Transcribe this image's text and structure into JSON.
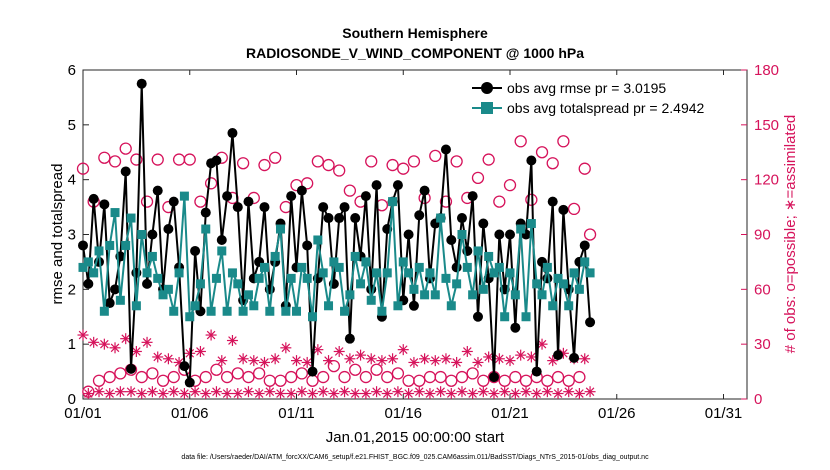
{
  "chart_data": {
    "type": "line",
    "title": "Southern Hemisphere",
    "subtitle": "RADIOSONDE_V_WIND_COMPONENT @ 1000 hPa",
    "xlabel": "Jan.01,2015 00:00:00 start",
    "ylabel_left": "rmse and totalspread",
    "ylabel_right": "# of obs: o=possible; ∗=assimilated",
    "footnote": "data file: /Users/raeder/DAI/ATM_forcXX/CAM6_setup/f.e21.FHIST_BGC.f09_025.CAM6assim.011/BadSST/Diags_NTrS_2015-01/obs_diag_output.nc",
    "xlim": [
      1,
      32.1
    ],
    "ylim_left": [
      0,
      6
    ],
    "ylim_right": [
      0,
      180
    ],
    "x_ticks": [
      1,
      6,
      11,
      16,
      21,
      26,
      31
    ],
    "x_tick_labels": [
      "01/01",
      "01/06",
      "01/11",
      "01/16",
      "01/21",
      "01/26",
      "01/31"
    ],
    "y_left_ticks": [
      "0",
      "1",
      "2",
      "3",
      "4",
      "5",
      "6"
    ],
    "y_right_ticks": [
      "0",
      "30",
      "60",
      "90",
      "120",
      "150",
      "180"
    ],
    "colors": {
      "rmse": "#000000",
      "spread": "#1a8a8a",
      "counts": "#d6135b"
    },
    "legend": [
      {
        "label": "obs avg rmse pr = 3.0195",
        "series": "rmse"
      },
      {
        "label": "obs avg totalspread pr = 2.4942",
        "series": "spread"
      }
    ],
    "x_start": 1.0,
    "x_step": 0.25,
    "series": [
      {
        "name": "obs avg rmse",
        "axis": "left",
        "values": [
          2.8,
          2.1,
          3.65,
          2.5,
          3.55,
          1.75,
          2.0,
          2.6,
          4.15,
          0.55,
          2.3,
          5.75,
          2.1,
          3.0,
          3.8,
          2.0,
          3.1,
          3.6,
          2.4,
          0.6,
          0.3,
          2.7,
          1.6,
          3.4,
          4.3,
          4.35,
          2.9,
          3.7,
          4.85,
          3.5,
          1.8,
          3.6,
          2.2,
          2.5,
          3.5,
          2.0,
          2.5,
          3.2,
          1.7,
          3.7,
          2.4,
          3.8,
          2.8,
          0.5,
          2.2,
          3.5,
          3.3,
          2.1,
          3.3,
          3.5,
          1.1,
          3.3,
          2.6,
          3.7,
          2.0,
          3.9,
          1.5,
          3.1,
          3.6,
          3.9,
          1.8,
          3.0,
          1.7,
          3.35,
          3.8,
          2.2,
          3.2,
          3.3,
          4.55,
          2.9,
          2.4,
          3.3,
          2.7,
          3.7,
          1.5,
          3.2,
          2.2,
          0.4,
          3.0,
          2.0,
          3.0,
          1.3,
          3.2,
          3.0,
          4.35,
          0.5,
          2.5,
          2.2,
          3.6,
          0.8,
          3.45,
          2.0,
          0.75,
          2.5,
          2.8,
          1.4
        ],
        "display": "line+filled-circle"
      },
      {
        "name": "obs avg totalspread",
        "axis": "left",
        "values": [
          2.4,
          2.5,
          2.3,
          2.7,
          1.6,
          2.8,
          3.4,
          1.8,
          2.8,
          3.3,
          1.7,
          3.0,
          2.3,
          2.6,
          2.2,
          1.9,
          2.0,
          1.6,
          2.3,
          3.7,
          1.5,
          1.7,
          2.1,
          3.1,
          1.6,
          2.2,
          2.7,
          1.6,
          2.3,
          2.1,
          1.6,
          1.9,
          1.7,
          2.2,
          2.4,
          1.6,
          2.6,
          3.1,
          1.6,
          2.2,
          1.6,
          2.4,
          2.2,
          1.5,
          2.9,
          2.3,
          1.7,
          2.5,
          2.4,
          1.6,
          1.9,
          2.6,
          2.1,
          2.5,
          1.8,
          2.3,
          1.6,
          2.3,
          3.6,
          1.7,
          2.5,
          2.3,
          2.0,
          2.4,
          1.9,
          2.3,
          1.9,
          3.3,
          2.2,
          1.7,
          2.1,
          3.0,
          2.4,
          1.9,
          2.7,
          2.0,
          2.6,
          2.3,
          2.4,
          1.5,
          2.3,
          1.9,
          3.1,
          1.5,
          3.2,
          2.1,
          1.9,
          2.4,
          1.7,
          2.2,
          2.1,
          1.7,
          2.3,
          2.0,
          2.5,
          2.3
        ],
        "display": "line+filled-square"
      },
      {
        "name": "possible obs",
        "axis": "right",
        "values": [
          126,
          4,
          108,
          10,
          132,
          12,
          130,
          14,
          137,
          16,
          131,
          12,
          108,
          14,
          131,
          10,
          105,
          12,
          131,
          16,
          131,
          10,
          108,
          12,
          118,
          16,
          132,
          12,
          110,
          14,
          129,
          12,
          110,
          14,
          128,
          10,
          132,
          10,
          105,
          12,
          117,
          14,
          118,
          10,
          130,
          12,
          128,
          18,
          125,
          12,
          114,
          16,
          108,
          12,
          130,
          16,
          106,
          12,
          128,
          14,
          126,
          10,
          130,
          10,
          110,
          12,
          133,
          12,
          108,
          10,
          130,
          12,
          110,
          14,
          121,
          10,
          131,
          12,
          108,
          10,
          117,
          12,
          141,
          10,
          109,
          12,
          135,
          10,
          129,
          12,
          141,
          10,
          104,
          12,
          126,
          90
        ],
        "display": "open-circle"
      },
      {
        "name": "assimilated obs",
        "axis": "right",
        "values": [
          35,
          3,
          31,
          4,
          30,
          3,
          28,
          4,
          33,
          4,
          26,
          3,
          31,
          4,
          23,
          3,
          22,
          4,
          20,
          3,
          25,
          4,
          26,
          3,
          35,
          4,
          21,
          3,
          32,
          3,
          22,
          4,
          21,
          3,
          20,
          4,
          22,
          3,
          28,
          3,
          21,
          4,
          20,
          3,
          27,
          4,
          21,
          3,
          26,
          4,
          22,
          3,
          24,
          3,
          22,
          4,
          21,
          3,
          22,
          4,
          27,
          3,
          20,
          4,
          22,
          3,
          21,
          4,
          22,
          3,
          20,
          4,
          26,
          3,
          20,
          4,
          23,
          3,
          22,
          4,
          21,
          3,
          24,
          4,
          23,
          3,
          30,
          4,
          21,
          3,
          25,
          4,
          22,
          3,
          22,
          4
        ],
        "display": "asterisk"
      }
    ]
  }
}
